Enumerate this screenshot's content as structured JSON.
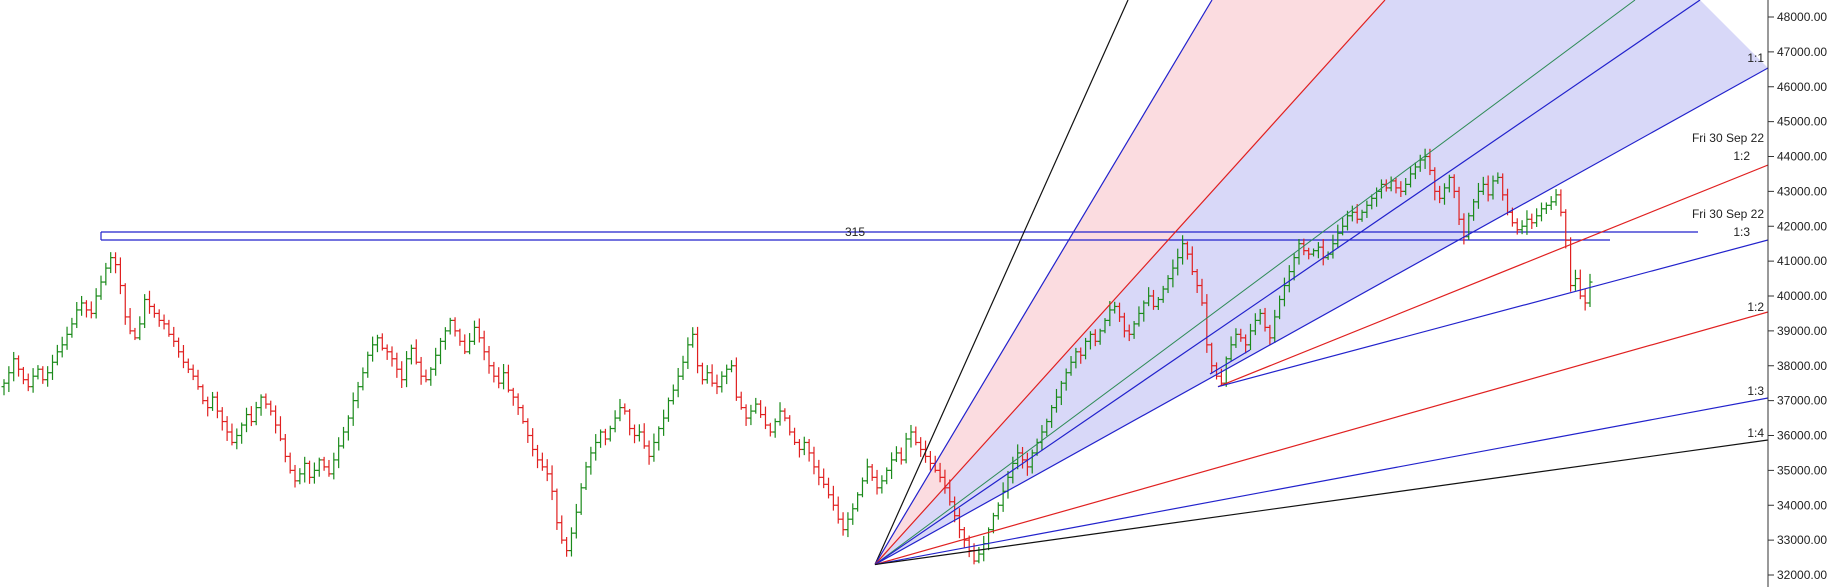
{
  "chart_data": {
    "type": "bar",
    "subtype": "ohlc-gann-fan",
    "colors": {
      "up": "#1a8a1a",
      "down": "#e02020",
      "fan_blue": "#2222cc",
      "fan_red": "#e02020",
      "fan_black": "#111111",
      "fan_green": "#2e8b57",
      "fill_blue": "#d8d8f8",
      "fill_red": "#fbdce0"
    },
    "y_axis": {
      "position": "right",
      "ylim": [
        31700,
        48500
      ],
      "ticks": [
        "32000.00",
        "33000.00",
        "34000.00",
        "35000.00",
        "36000.00",
        "37000.00",
        "38000.00",
        "39000.00",
        "40000.00",
        "41000.00",
        "42000.00",
        "43000.00",
        "44000.00",
        "45000.00",
        "46000.00",
        "47000.00",
        "48000.00"
      ]
    },
    "x_axis": {
      "xlim": [
        0,
        520
      ]
    },
    "ohlc_close": [
      37500,
      37800,
      38200,
      37900,
      37600,
      37400,
      37700,
      37900,
      37600,
      37800,
      38100,
      38400,
      38600,
      38900,
      39200,
      39600,
      39800,
      39600,
      39500,
      40000,
      40400,
      40800,
      41100,
      40900,
      40300,
      39400,
      39000,
      38800,
      39200,
      39900,
      39700,
      39500,
      39300,
      39200,
      38900,
      38700,
      38400,
      38100,
      37900,
      37700,
      37400,
      37000,
      36800,
      37100,
      36700,
      36400,
      36100,
      35800,
      36000,
      36300,
      36600,
      36400,
      36800,
      37100,
      36900,
      36700,
      36300,
      35900,
      35400,
      35000,
      34700,
      34900,
      35200,
      34800,
      35000,
      35300,
      35100,
      34900,
      35300,
      35700,
      36100,
      36500,
      37000,
      37400,
      37800,
      38300,
      38600,
      38800,
      38500,
      38400,
      38200,
      37900,
      37600,
      38200,
      38500,
      38100,
      37700,
      37600,
      37900,
      38300,
      38700,
      39000,
      39300,
      39000,
      38700,
      38400,
      38700,
      39100,
      38800,
      38400,
      38000,
      37700,
      37500,
      37800,
      37300,
      37100,
      36800,
      36400,
      36000,
      35600,
      35300,
      35100,
      34900,
      34400,
      33500,
      33000,
      32700,
      33200,
      33800,
      34500,
      35100,
      35500,
      35800,
      36100,
      35900,
      36200,
      36500,
      36800,
      36700,
      36200,
      36000,
      36100,
      35700,
      35400,
      35800,
      36200,
      36500,
      37000,
      37300,
      37700,
      38100,
      38600,
      38900,
      38000,
      37600,
      37800,
      37500,
      37400,
      37700,
      37900,
      38000,
      37100,
      36800,
      36500,
      36700,
      36900,
      36600,
      36300,
      36100,
      36400,
      36700,
      36500,
      36100,
      35800,
      35600,
      35800,
      35500,
      35100,
      34800,
      34600,
      34300,
      34000,
      33600,
      33300,
      33600,
      33900,
      34300,
      34700,
      35100,
      34800,
      34500,
      34700,
      35000,
      35300,
      35500,
      35300,
      35900,
      36100,
      35800,
      35600,
      35400,
      35200,
      35000,
      34800,
      34500,
      34100,
      33700,
      33300,
      33000,
      32700,
      32400,
      32600,
      32900,
      33300,
      33700,
      34000,
      34400,
      34800,
      35200,
      35500,
      35300,
      35100,
      35500,
      35800,
      36100,
      36400,
      36800,
      37100,
      37500,
      37800,
      38100,
      38400,
      38300,
      38700,
      38900,
      38700,
      39000,
      39300,
      39600,
      39700,
      39400,
      39000,
      38900,
      39200,
      39500,
      39800,
      40000,
      39700,
      39900,
      40200,
      40500,
      40800,
      41100,
      41500,
      41200,
      40700,
      40300,
      39800,
      38600,
      38000,
      37700,
      37500,
      38200,
      38600,
      38900,
      38800,
      38600,
      39000,
      39300,
      39500,
      39100,
      38800,
      39400,
      39900,
      40300,
      40700,
      41100,
      41500,
      41300,
      41200,
      41300,
      41400,
      41100,
      41200,
      41500,
      41800,
      42000,
      42300,
      42400,
      42200,
      42400,
      42600,
      42800,
      43000,
      43200,
      43100,
      43300,
      43100,
      43000,
      43200,
      43500,
      43700,
      43900,
      44000,
      43600,
      43000,
      42800,
      43100,
      43400,
      43000,
      42200,
      41700,
      42300,
      42700,
      43000,
      43200,
      42900,
      43300,
      43400,
      42900,
      42400,
      42100,
      41900,
      42000,
      42200,
      42100,
      42300,
      42500,
      42600,
      42700,
      42900,
      42400,
      41600,
      40300,
      40500,
      40000,
      39800,
      40400
    ],
    "horizontal_lines": [
      {
        "y_high": 41800,
        "y_low": 41600,
        "label": "315"
      }
    ],
    "fan_left": {
      "origin_y": 32300,
      "labels": [
        "1:1",
        "1:2",
        "1:3",
        "1:4"
      ]
    },
    "fan_right": {
      "origin_y": 37400,
      "labels": [
        "Fri 30 Sep 22",
        "1:2",
        "Fri 30 Sep 22",
        "1:3"
      ]
    },
    "annotations": [
      "315"
    ]
  }
}
